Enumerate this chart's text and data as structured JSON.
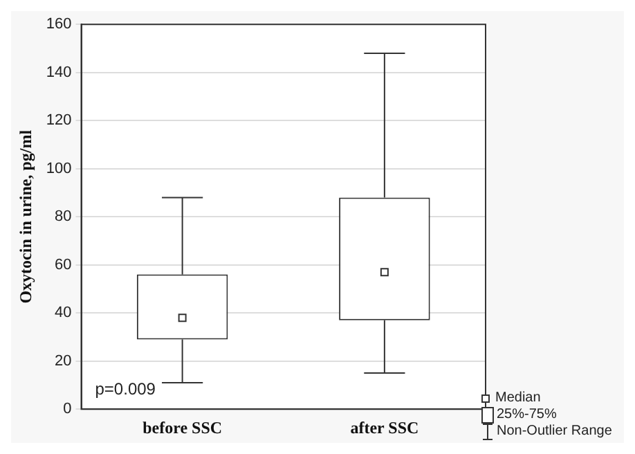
{
  "chart_data": {
    "type": "box",
    "ylabel": "Oxytocin in urine, pg/ml",
    "categories": [
      "before SSC",
      "after SSC"
    ],
    "boxes": [
      {
        "low": 11,
        "q1": 29,
        "median": 38,
        "q3": 56,
        "high": 88
      },
      {
        "low": 15,
        "q1": 37,
        "median": 57,
        "q3": 88,
        "high": 148
      }
    ],
    "color": "#333333",
    "ylim": [
      0,
      160
    ],
    "yticks": [
      0,
      20,
      40,
      60,
      80,
      100,
      120,
      140,
      160
    ],
    "grid": "y",
    "annotations": [
      "p=0.009",
      "Median",
      "25%-75%",
      "Non-Outlier Range"
    ]
  }
}
